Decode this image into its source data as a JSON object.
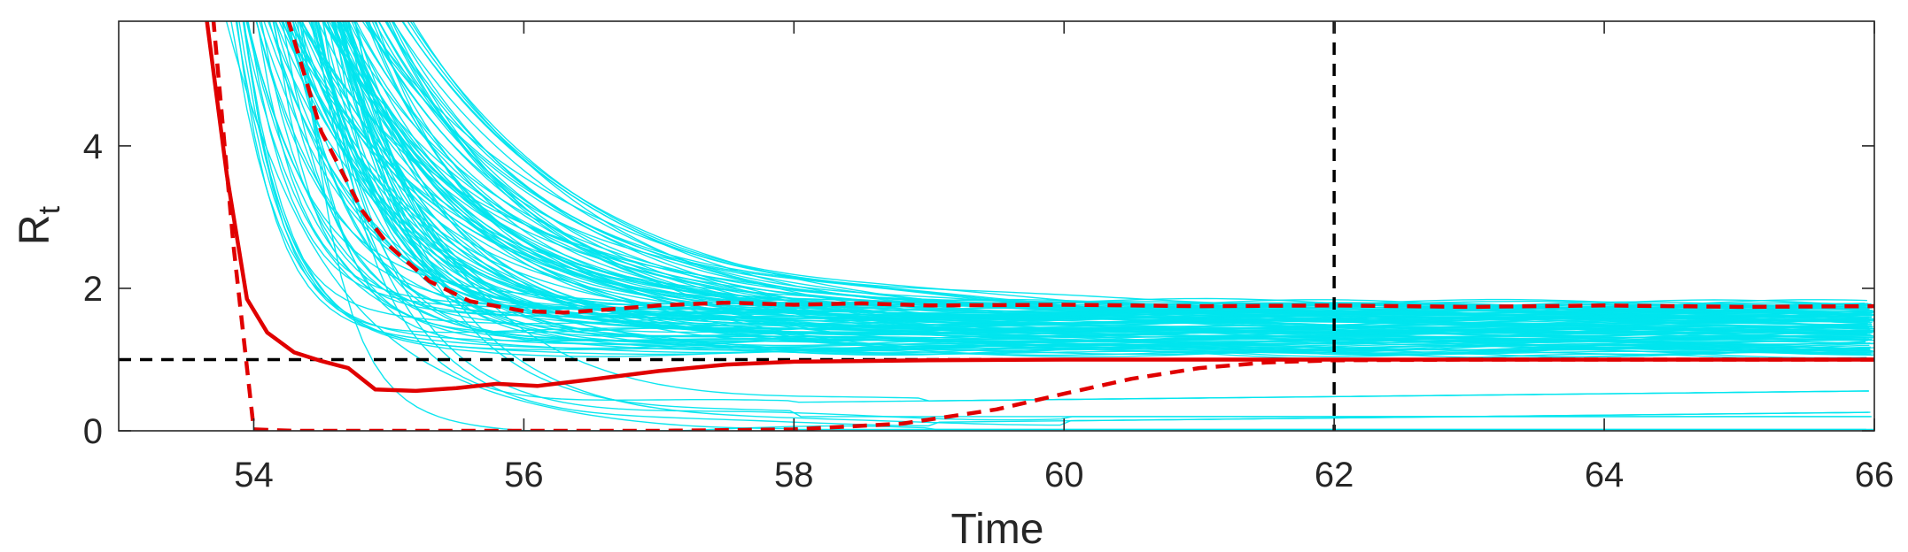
{
  "chart_data": {
    "type": "line",
    "title": "",
    "xlabel": "Time",
    "ylabel": "R",
    "ylabel_subscript": "t",
    "xlim": [
      53,
      66
    ],
    "ylim": [
      0,
      5.75
    ],
    "xticks": [
      54,
      56,
      58,
      60,
      62,
      64,
      66
    ],
    "yticks": [
      0,
      2,
      4
    ],
    "grid": false,
    "colors": {
      "samples": "#00e5ee",
      "median": "#e00000",
      "bounds": "#e00000",
      "reference": "#000000",
      "axis": "#262626"
    },
    "reference_lines": {
      "horizontal_y": 1,
      "vertical_x": 62
    },
    "series": [
      {
        "role": "median",
        "style": "solid",
        "x": [
          53.65,
          53.8,
          53.95,
          54.1,
          54.3,
          54.5,
          54.7,
          54.9,
          55.2,
          55.5,
          55.8,
          56.1,
          56.5,
          57.0,
          57.5,
          58.0,
          58.5,
          59.0,
          60.0,
          62.0,
          64.0,
          66.0
        ],
        "y": [
          5.8,
          3.6,
          1.85,
          1.38,
          1.1,
          0.98,
          0.88,
          0.58,
          0.56,
          0.6,
          0.66,
          0.63,
          0.72,
          0.84,
          0.93,
          0.97,
          0.98,
          0.99,
          1.0,
          1.0,
          1.0,
          1.0
        ]
      },
      {
        "role": "upper-bound",
        "style": "dashed",
        "x": [
          54.25,
          54.5,
          54.8,
          55.0,
          55.3,
          55.6,
          56.0,
          56.3,
          56.6,
          57.0,
          57.5,
          58.0,
          58.5,
          59.0,
          60.0,
          61.0,
          62.0,
          63.0,
          64.0,
          65.0,
          66.0
        ],
        "y": [
          5.8,
          4.2,
          3.1,
          2.6,
          2.1,
          1.82,
          1.68,
          1.66,
          1.7,
          1.76,
          1.8,
          1.77,
          1.79,
          1.76,
          1.77,
          1.75,
          1.76,
          1.74,
          1.76,
          1.74,
          1.75
        ]
      },
      {
        "role": "lower-bound",
        "style": "dashed",
        "x": [
          53.7,
          53.85,
          54.0,
          54.3,
          55.0,
          56.0,
          57.0,
          58.0,
          58.8,
          59.5,
          60.0,
          60.5,
          61.0,
          61.5,
          62.0,
          63.0,
          64.0,
          66.0
        ],
        "y": [
          5.8,
          2.6,
          0.02,
          0.0,
          0.0,
          0.0,
          0.0,
          0.02,
          0.1,
          0.3,
          0.52,
          0.73,
          0.88,
          0.96,
          0.99,
          1.0,
          1.0,
          1.0
        ]
      }
    ],
    "sample_trajectories": {
      "count": 130,
      "description_free": true,
      "typical_plateau_range": [
        1.02,
        1.8
      ],
      "low_branch_values": [
        0.02,
        0.1,
        0.2,
        0.4
      ]
    }
  }
}
